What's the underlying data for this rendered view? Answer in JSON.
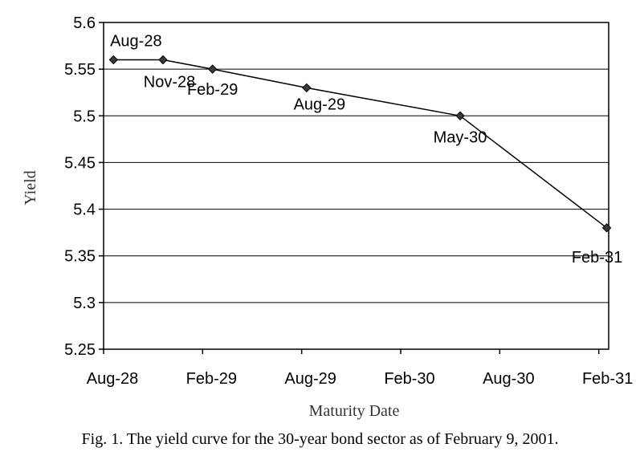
{
  "chart_data": {
    "type": "line",
    "xlabel": "Maturity Date",
    "ylabel": "Yield",
    "ylim": [
      5.25,
      5.6
    ],
    "yticks": [
      "5.25",
      "5.3",
      "5.35",
      "5.4",
      "5.45",
      "5.5",
      "5.55",
      "5.6"
    ],
    "xticks": [
      "Aug-28",
      "Feb-29",
      "Aug-29",
      "Feb-30",
      "Aug-30",
      "Feb-31"
    ],
    "grid": "horizontal",
    "legend": "none",
    "series": [
      {
        "points": [
          {
            "label": "Aug-28",
            "x": 0.1,
            "y": 5.56
          },
          {
            "label": "Nov-28",
            "x": 0.6,
            "y": 5.56
          },
          {
            "label": "Feb-29",
            "x": 1.1,
            "y": 5.55
          },
          {
            "label": "Aug-29",
            "x": 2.05,
            "y": 5.53
          },
          {
            "label": "May-30",
            "x": 3.6,
            "y": 5.5
          },
          {
            "label": "Feb-31",
            "x": 5.08,
            "y": 5.38
          }
        ]
      }
    ]
  },
  "caption": "Fig. 1.  The yield curve for the 30-year bond sector as of February 9, 2001."
}
